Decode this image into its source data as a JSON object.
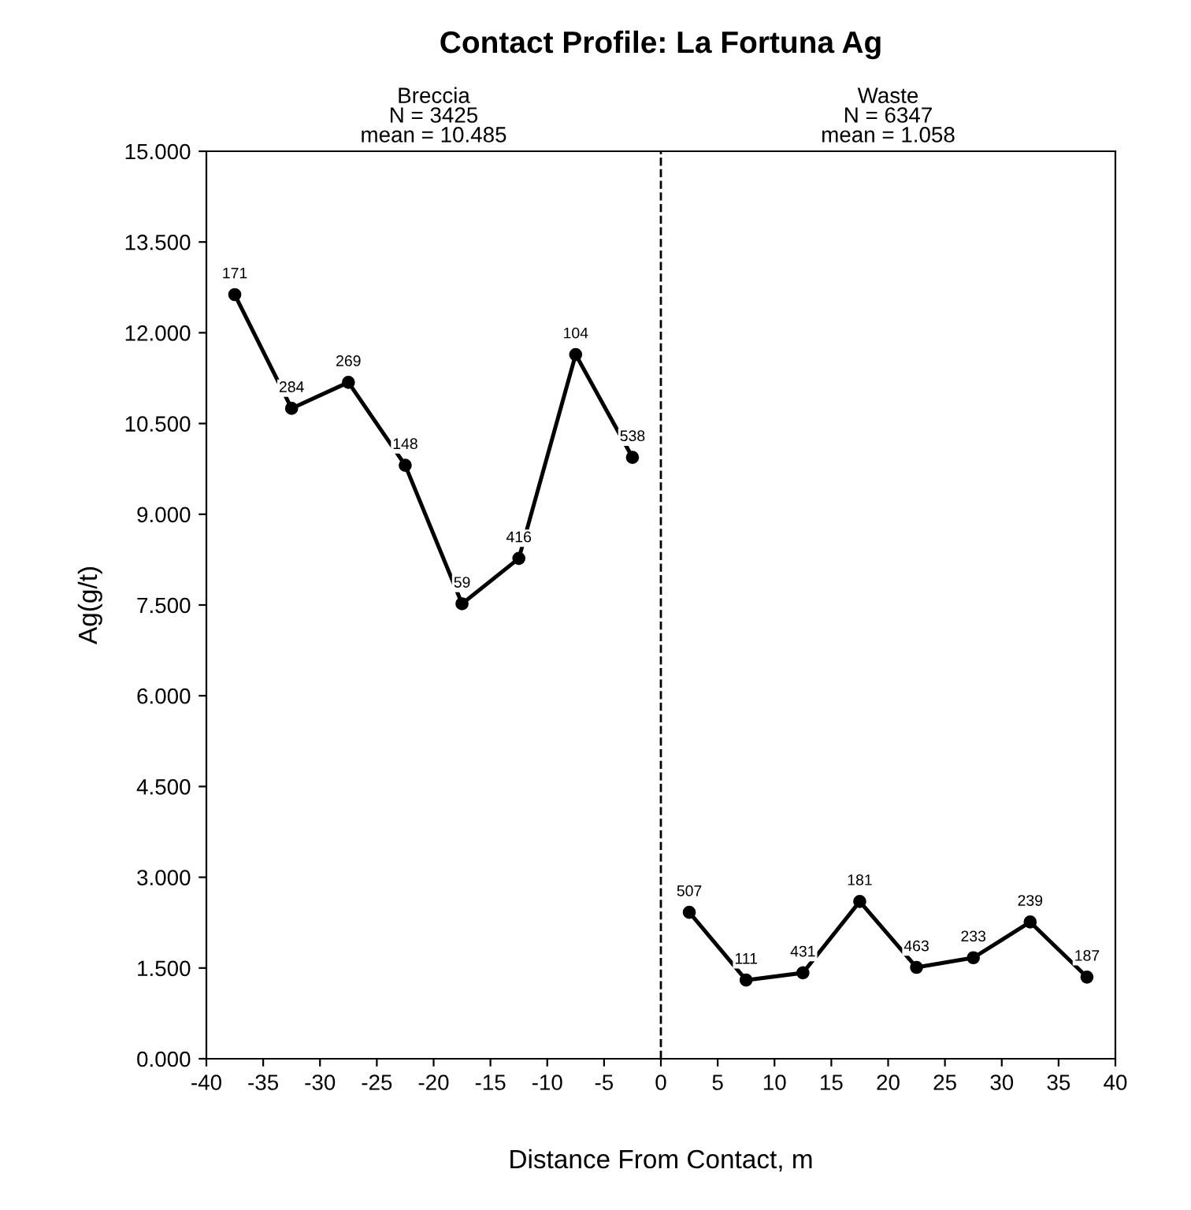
{
  "chart_data": {
    "type": "line",
    "title": "Contact Profile: La Fortuna Ag",
    "xlabel": "Distance From Contact, m",
    "ylabel": "Ag(g/t)",
    "annotations": [
      "Breccia\nN = 3425\nmean = 10.485",
      "Waste\nN = 6347\nmean = 1.058",
      {
        "text": "171",
        "x": -37.5,
        "y": 12.63
      },
      {
        "text": "284",
        "x": -32.5,
        "y": 10.75
      },
      {
        "text": "269",
        "x": -27.5,
        "y": 11.18
      },
      {
        "text": "148",
        "x": -22.5,
        "y": 9.81
      },
      {
        "text": "59",
        "x": -17.5,
        "y": 7.52
      },
      {
        "text": "416",
        "x": -12.5,
        "y": 8.27
      },
      {
        "text": "104",
        "x": -7.5,
        "y": 11.64
      },
      {
        "text": "538",
        "x": -2.5,
        "y": 9.94
      },
      {
        "text": "507",
        "x": 2.5,
        "y": 2.42
      },
      {
        "text": "111",
        "x": 7.5,
        "y": 1.3
      },
      {
        "text": "431",
        "x": 12.5,
        "y": 1.42
      },
      {
        "text": "181",
        "x": 17.5,
        "y": 2.6
      },
      {
        "text": "463",
        "x": 22.5,
        "y": 1.51
      },
      {
        "text": "233",
        "x": 27.5,
        "y": 1.67
      },
      {
        "text": "239",
        "x": 32.5,
        "y": 2.26
      },
      {
        "text": "187",
        "x": 37.5,
        "y": 1.35
      }
    ],
    "series": [
      {
        "color": "#000000",
        "x": [
          -37.5,
          -32.5,
          -27.5,
          -22.5,
          -17.5,
          -12.5,
          -7.5,
          -2.5
        ],
        "values": [
          12.63,
          10.75,
          11.18,
          9.81,
          7.52,
          8.27,
          11.64,
          9.94
        ]
      },
      {
        "color": "#000000",
        "x": [
          2.5,
          7.5,
          12.5,
          17.5,
          22.5,
          27.5,
          32.5,
          37.5
        ],
        "values": [
          2.42,
          1.3,
          1.42,
          2.6,
          1.51,
          1.67,
          2.26,
          1.35
        ]
      }
    ],
    "ref_lines": [
      {
        "axis": "x",
        "value": 0,
        "color": "#000000",
        "line_style": "dashed"
      }
    ],
    "xlim": [
      -40,
      40
    ],
    "xticks": [
      -40,
      -35,
      -30,
      -25,
      -20,
      -15,
      -10,
      -5,
      0,
      5,
      10,
      15,
      20,
      25,
      30,
      35,
      40
    ],
    "ylim": [
      0,
      15
    ],
    "yticks": [
      {
        "value": 0,
        "label": "0.000"
      },
      {
        "value": 1.5,
        "label": "1.500"
      },
      {
        "value": 3,
        "label": "3.000"
      },
      {
        "value": 4.5,
        "label": "4.500"
      },
      {
        "value": 6,
        "label": "6.000"
      },
      {
        "value": 7.5,
        "label": "7.500"
      },
      {
        "value": 9,
        "label": "9.000"
      },
      {
        "value": 10.5,
        "label": "10.500"
      },
      {
        "value": 12,
        "label": "12.000"
      },
      {
        "value": 13.5,
        "label": "13.500"
      },
      {
        "value": 15,
        "label": "15.000"
      }
    ],
    "marker": "circle",
    "line_style": "solid",
    "grid": false,
    "legend": false
  }
}
